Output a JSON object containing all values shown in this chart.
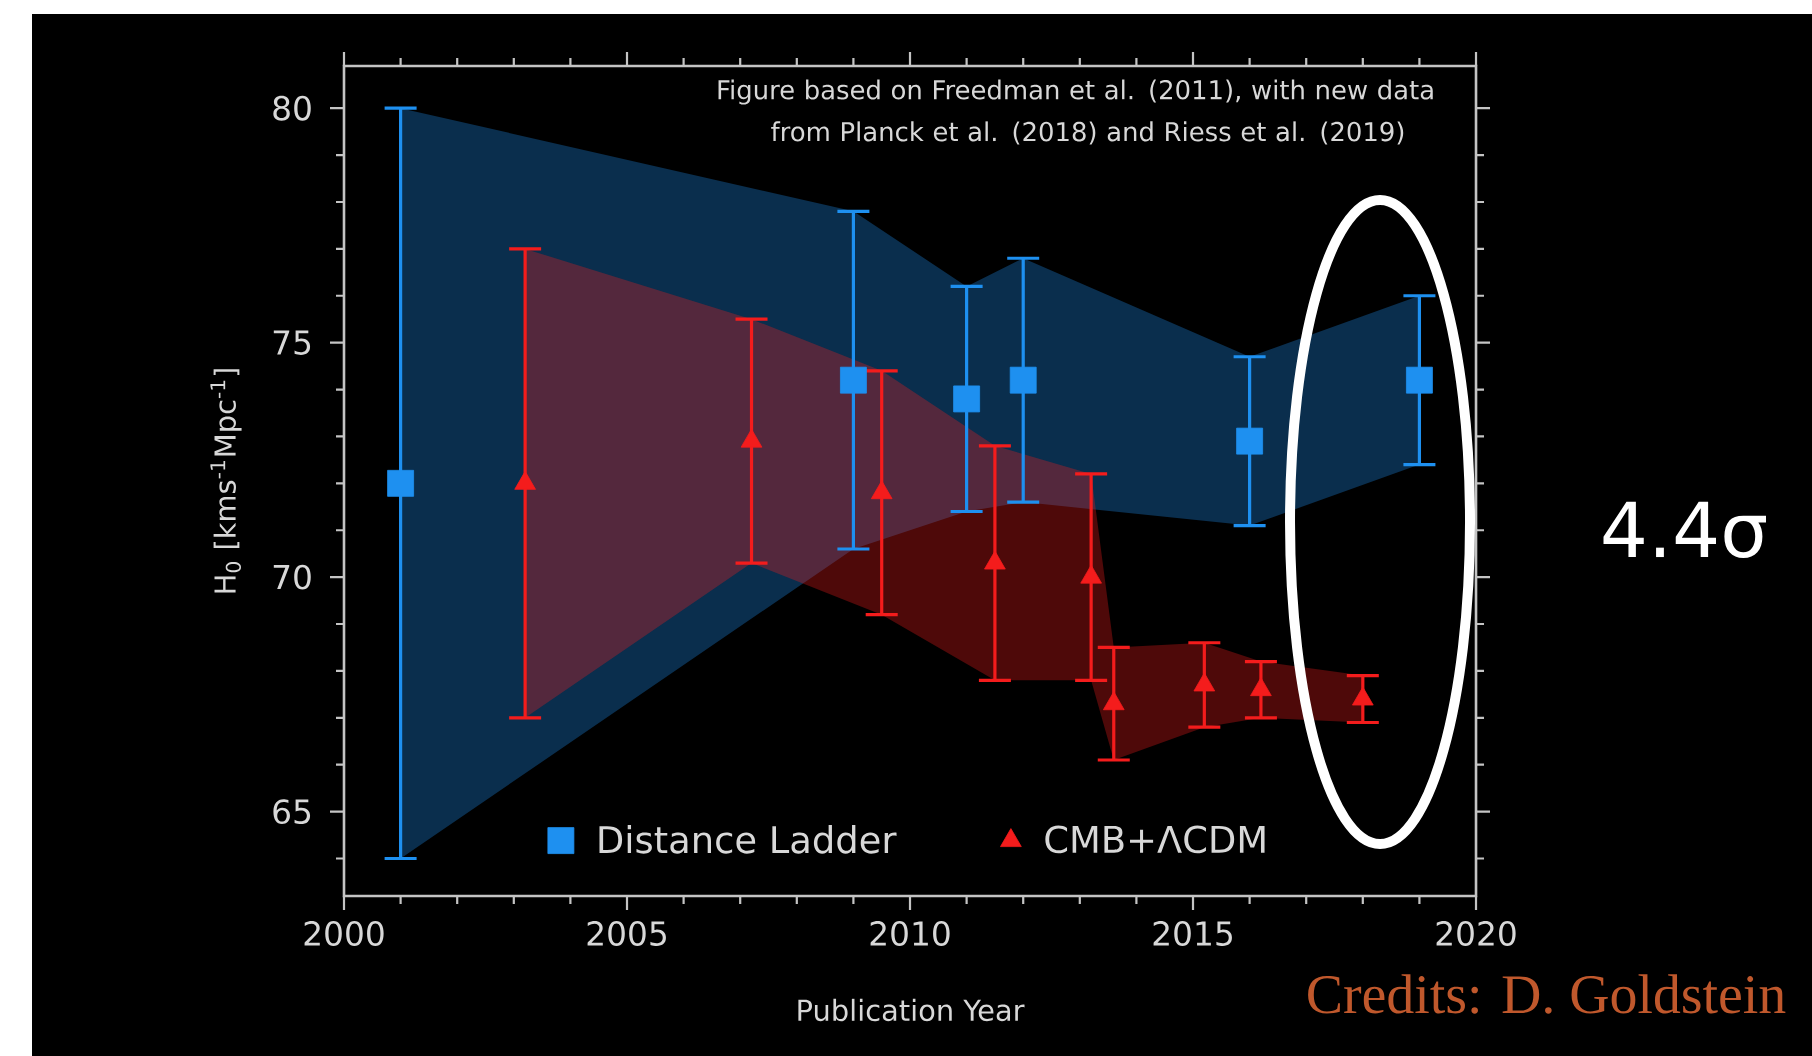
{
  "chart_data": {
    "type": "scatter",
    "xlabel": "Publication Year",
    "ylabel": "H$_{0}$ [kms$^{-1}$Mpc$^{-1}$]",
    "annotations": [
      "Figure based on Freedman et al. (2011), with new data from Planck et al. (2018) and Riess et al. (2019)",
      "4.4σ",
      "Credits: D. Goldstein"
    ],
    "xlim": [
      2000,
      2020
    ],
    "ylim": [
      63.2,
      80.9
    ],
    "xticks": [
      2000,
      {
        "value": 2001,
        "label": null
      },
      {
        "value": 2002,
        "label": null
      },
      {
        "value": 2003,
        "label": null
      },
      {
        "value": 2004,
        "label": null
      },
      2005,
      {
        "value": 2006,
        "label": null
      },
      {
        "value": 2007,
        "label": null
      },
      {
        "value": 2008,
        "label": null
      },
      {
        "value": 2009,
        "label": null
      },
      2010,
      {
        "value": 2011,
        "label": null
      },
      {
        "value": 2012,
        "label": null
      },
      {
        "value": 2013,
        "label": null
      },
      {
        "value": 2014,
        "label": null
      },
      2015,
      {
        "value": 2016,
        "label": null
      },
      {
        "value": 2017,
        "label": null
      },
      {
        "value": 2018,
        "label": null
      },
      {
        "value": 2019,
        "label": null
      },
      2020
    ],
    "yticks": [
      {
        "value": 64,
        "label": null
      },
      65,
      {
        "value": 66,
        "label": null
      },
      {
        "value": 67,
        "label": null
      },
      {
        "value": 68,
        "label": null
      },
      {
        "value": 69,
        "label": null
      },
      70,
      {
        "value": 71,
        "label": null
      },
      {
        "value": 72,
        "label": null
      },
      {
        "value": 73,
        "label": null
      },
      {
        "value": 74,
        "label": null
      },
      75,
      {
        "value": 76,
        "label": null
      },
      {
        "value": 77,
        "label": null
      },
      {
        "value": 78,
        "label": null
      },
      {
        "value": 79,
        "label": null
      },
      80
    ],
    "legend": "bottom",
    "series": [
      {
        "name": "Distance Ladder",
        "marker": "square",
        "color": "#1e90f0",
        "x": [
          2001,
          2009,
          2011,
          2012,
          2016,
          2019
        ],
        "values": [
          72.0,
          74.2,
          73.8,
          74.2,
          72.9,
          74.2
        ],
        "errors": [
          8,
          3.6,
          2.4,
          2.6,
          1.8,
          1.8
        ],
        "lower": [
          64.0,
          70.6,
          71.4,
          71.6,
          71.1,
          72.4
        ],
        "upper": [
          80.0,
          77.8,
          76.2,
          76.8,
          74.7,
          76.0
        ]
      },
      {
        "name": "CMB+ΛCDM",
        "marker": "triangle",
        "color": "#f41c1c",
        "x": [
          2003.2,
          2007.2,
          2009.5,
          2011.5,
          2013.2,
          2013.6,
          2015.2,
          2016.2,
          2018.0
        ],
        "values": [
          72.0,
          72.9,
          71.8,
          70.3,
          70.0,
          67.3,
          67.7,
          67.6,
          67.4
        ],
        "errors": [
          5,
          2.6,
          2.6,
          2.5,
          2.2,
          1.2,
          0.9,
          0.6,
          0.5
        ],
        "lower": [
          67.0,
          70.3,
          69.2,
          67.8,
          67.8,
          66.1,
          66.8,
          67.0,
          66.9
        ],
        "upper": [
          77.0,
          75.5,
          74.4,
          72.8,
          72.2,
          68.5,
          68.6,
          68.2,
          67.9
        ]
      }
    ]
  }
}
